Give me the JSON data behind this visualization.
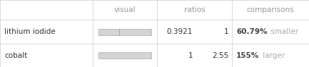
{
  "rows": [
    "lithium iodide",
    "cobalt"
  ],
  "col_headers": [
    "visual",
    "ratios",
    "comparisons"
  ],
  "ratios_col1": [
    "0.3921",
    "1"
  ],
  "ratios_col2": [
    "1",
    "2.55"
  ],
  "comparisons_pct": [
    "60.79%",
    "155%"
  ],
  "comparisons_word": [
    "smaller",
    "larger"
  ],
  "bar_values": [
    0.3921,
    1.0
  ],
  "bar_max": 1.0,
  "bar_color": "#d4d4d4",
  "bar_border_color": "#aaaaaa",
  "bg_color": "#ffffff",
  "header_text_color": "#999999",
  "cell_text_color": "#333333",
  "pct_text_color": "#444444",
  "word_text_color": "#aaaaaa",
  "grid_color": "#cccccc",
  "font_size": 7.5,
  "header_font_size": 7.5,
  "fig_width": 4.33,
  "fig_height": 0.95,
  "dpi": 100
}
